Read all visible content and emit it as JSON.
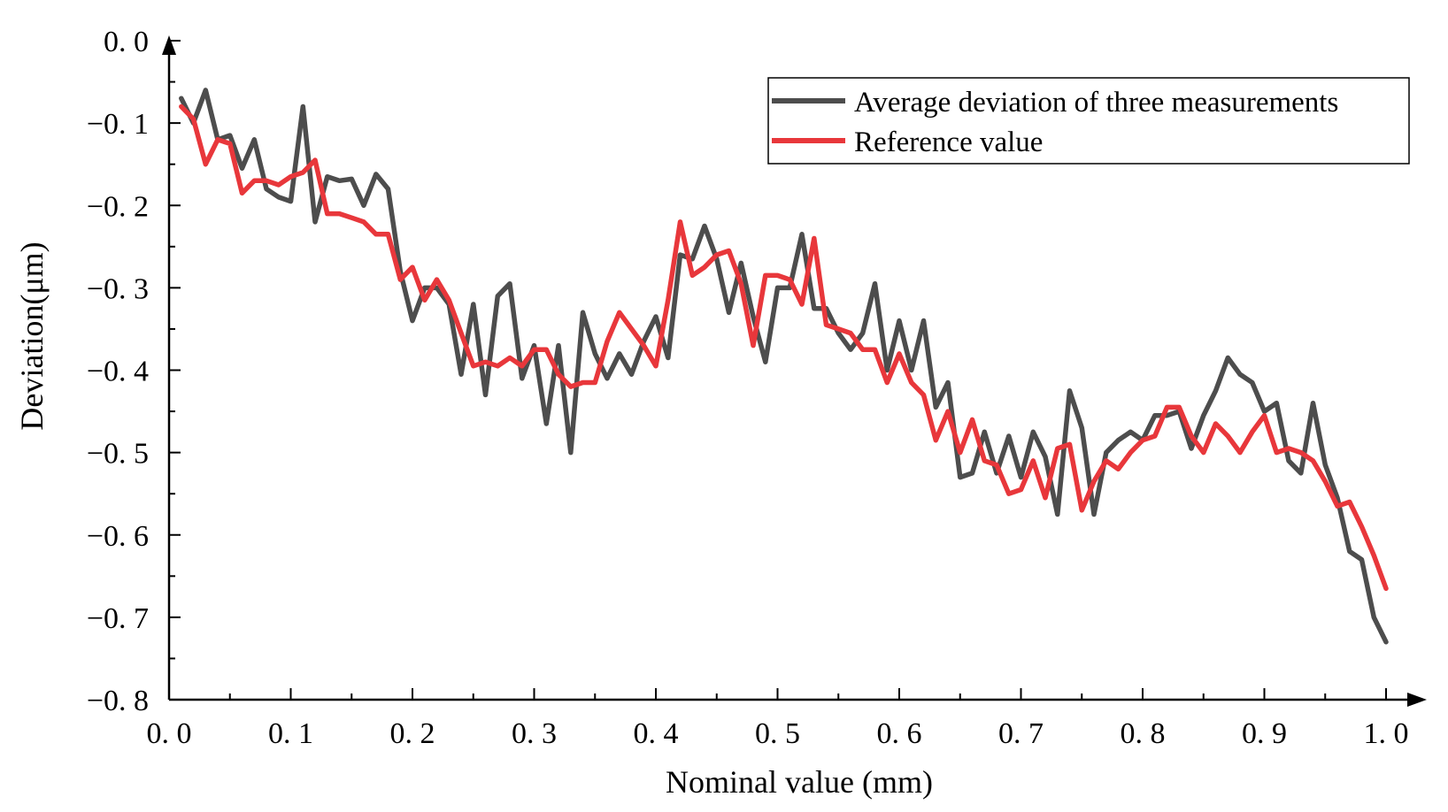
{
  "chart_data": {
    "type": "line",
    "xlabel": "Nominal value (mm)",
    "ylabel": "Deviation(μm)",
    "xlim": [
      0.0,
      1.0
    ],
    "ylim": [
      -0.8,
      0.0
    ],
    "x_ticks": [
      0.0,
      0.1,
      0.2,
      0.3,
      0.4,
      0.5,
      0.6,
      0.7,
      0.8,
      0.9,
      1.0
    ],
    "x_tick_labels": [
      "0. 0",
      "0. 1",
      "0. 2",
      "0. 3",
      "0. 4",
      "0. 5",
      "0. 6",
      "0. 7",
      "0. 8",
      "0. 9",
      "1. 0"
    ],
    "y_ticks": [
      0.0,
      -0.1,
      -0.2,
      -0.3,
      -0.4,
      -0.5,
      -0.6,
      -0.7,
      -0.8
    ],
    "y_tick_labels": [
      "0. 0",
      "−0. 1",
      "−0. 2",
      "−0. 3",
      "−0. 4",
      "−0. 5",
      "−0. 6",
      "−0. 7",
      "−0. 8"
    ],
    "grid": false,
    "legend_position": "top-right",
    "x": [
      0.01,
      0.02,
      0.03,
      0.04,
      0.05,
      0.06,
      0.07,
      0.08,
      0.09,
      0.1,
      0.11,
      0.12,
      0.13,
      0.14,
      0.15,
      0.16,
      0.17,
      0.18,
      0.19,
      0.2,
      0.21,
      0.22,
      0.23,
      0.24,
      0.25,
      0.26,
      0.27,
      0.28,
      0.29,
      0.3,
      0.31,
      0.32,
      0.33,
      0.34,
      0.35,
      0.36,
      0.37,
      0.38,
      0.39,
      0.4,
      0.41,
      0.42,
      0.43,
      0.44,
      0.45,
      0.46,
      0.47,
      0.48,
      0.49,
      0.5,
      0.51,
      0.52,
      0.53,
      0.54,
      0.55,
      0.56,
      0.57,
      0.58,
      0.59,
      0.6,
      0.61,
      0.62,
      0.63,
      0.64,
      0.65,
      0.66,
      0.67,
      0.68,
      0.69,
      0.7,
      0.71,
      0.72,
      0.73,
      0.74,
      0.75,
      0.76,
      0.77,
      0.78,
      0.79,
      0.8,
      0.81,
      0.82,
      0.83,
      0.84,
      0.85,
      0.86,
      0.87,
      0.88,
      0.89,
      0.9,
      0.91,
      0.92,
      0.93,
      0.94,
      0.95,
      0.96,
      0.97,
      0.98,
      0.99,
      1.0
    ],
    "series": [
      {
        "name": "Average deviation of three measurements",
        "color": "#4d4d4d",
        "values": [
          -0.07,
          -0.1,
          -0.06,
          -0.12,
          -0.115,
          -0.155,
          -0.12,
          -0.18,
          -0.19,
          -0.195,
          -0.08,
          -0.22,
          -0.165,
          -0.17,
          -0.168,
          -0.2,
          -0.162,
          -0.18,
          -0.28,
          -0.34,
          -0.3,
          -0.3,
          -0.32,
          -0.405,
          -0.32,
          -0.43,
          -0.31,
          -0.295,
          -0.41,
          -0.37,
          -0.465,
          -0.37,
          -0.5,
          -0.33,
          -0.38,
          -0.41,
          -0.38,
          -0.405,
          -0.365,
          -0.335,
          -0.385,
          -0.26,
          -0.265,
          -0.225,
          -0.265,
          -0.33,
          -0.27,
          -0.335,
          -0.39,
          -0.3,
          -0.3,
          -0.235,
          -0.325,
          -0.325,
          -0.355,
          -0.375,
          -0.355,
          -0.295,
          -0.4,
          -0.34,
          -0.4,
          -0.34,
          -0.445,
          -0.415,
          -0.53,
          -0.525,
          -0.475,
          -0.525,
          -0.48,
          -0.53,
          -0.475,
          -0.505,
          -0.575,
          -0.425,
          -0.47,
          -0.575,
          -0.5,
          -0.485,
          -0.475,
          -0.485,
          -0.455,
          -0.455,
          -0.45,
          -0.495,
          -0.455,
          -0.425,
          -0.385,
          -0.405,
          -0.415,
          -0.45,
          -0.44,
          -0.51,
          -0.525,
          -0.44,
          -0.515,
          -0.555,
          -0.62,
          -0.63,
          -0.7,
          -0.73
        ]
      },
      {
        "name": "Reference value",
        "color": "#e8373b",
        "values": [
          -0.08,
          -0.095,
          -0.15,
          -0.12,
          -0.125,
          -0.185,
          -0.17,
          -0.17,
          -0.175,
          -0.165,
          -0.16,
          -0.145,
          -0.21,
          -0.21,
          -0.215,
          -0.22,
          -0.235,
          -0.235,
          -0.29,
          -0.275,
          -0.315,
          -0.29,
          -0.315,
          -0.355,
          -0.395,
          -0.39,
          -0.395,
          -0.385,
          -0.395,
          -0.375,
          -0.375,
          -0.405,
          -0.42,
          -0.415,
          -0.415,
          -0.365,
          -0.33,
          -0.35,
          -0.37,
          -0.395,
          -0.315,
          -0.22,
          -0.285,
          -0.275,
          -0.26,
          -0.255,
          -0.295,
          -0.37,
          -0.285,
          -0.285,
          -0.29,
          -0.32,
          -0.24,
          -0.345,
          -0.35,
          -0.355,
          -0.375,
          -0.375,
          -0.415,
          -0.38,
          -0.415,
          -0.43,
          -0.485,
          -0.45,
          -0.5,
          -0.46,
          -0.51,
          -0.515,
          -0.55,
          -0.545,
          -0.51,
          -0.555,
          -0.495,
          -0.49,
          -0.57,
          -0.535,
          -0.51,
          -0.52,
          -0.5,
          -0.485,
          -0.48,
          -0.445,
          -0.445,
          -0.48,
          -0.5,
          -0.465,
          -0.48,
          -0.5,
          -0.475,
          -0.455,
          -0.5,
          -0.495,
          -0.5,
          -0.51,
          -0.535,
          -0.565,
          -0.56,
          -0.59,
          -0.625,
          -0.665
        ]
      }
    ]
  }
}
